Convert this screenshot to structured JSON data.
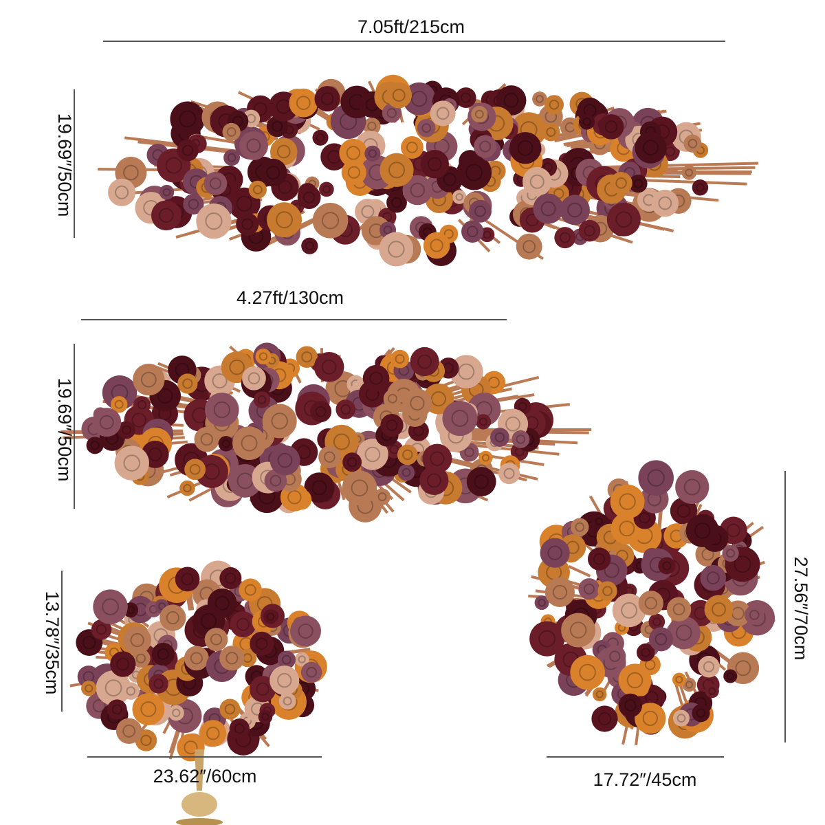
{
  "dimensions": {
    "garland_width": "7.05ft/215cm",
    "garland_height": "19.69″/50cm",
    "runner_width": "4.27ft/130cm",
    "runner_height": "19.69″/50cm",
    "centerpiece_height": "13.78″/35cm",
    "centerpiece_width": "23.62″/60cm",
    "corner_height": "27.56″/70cm",
    "corner_width": "17.72″/45cm"
  }
}
